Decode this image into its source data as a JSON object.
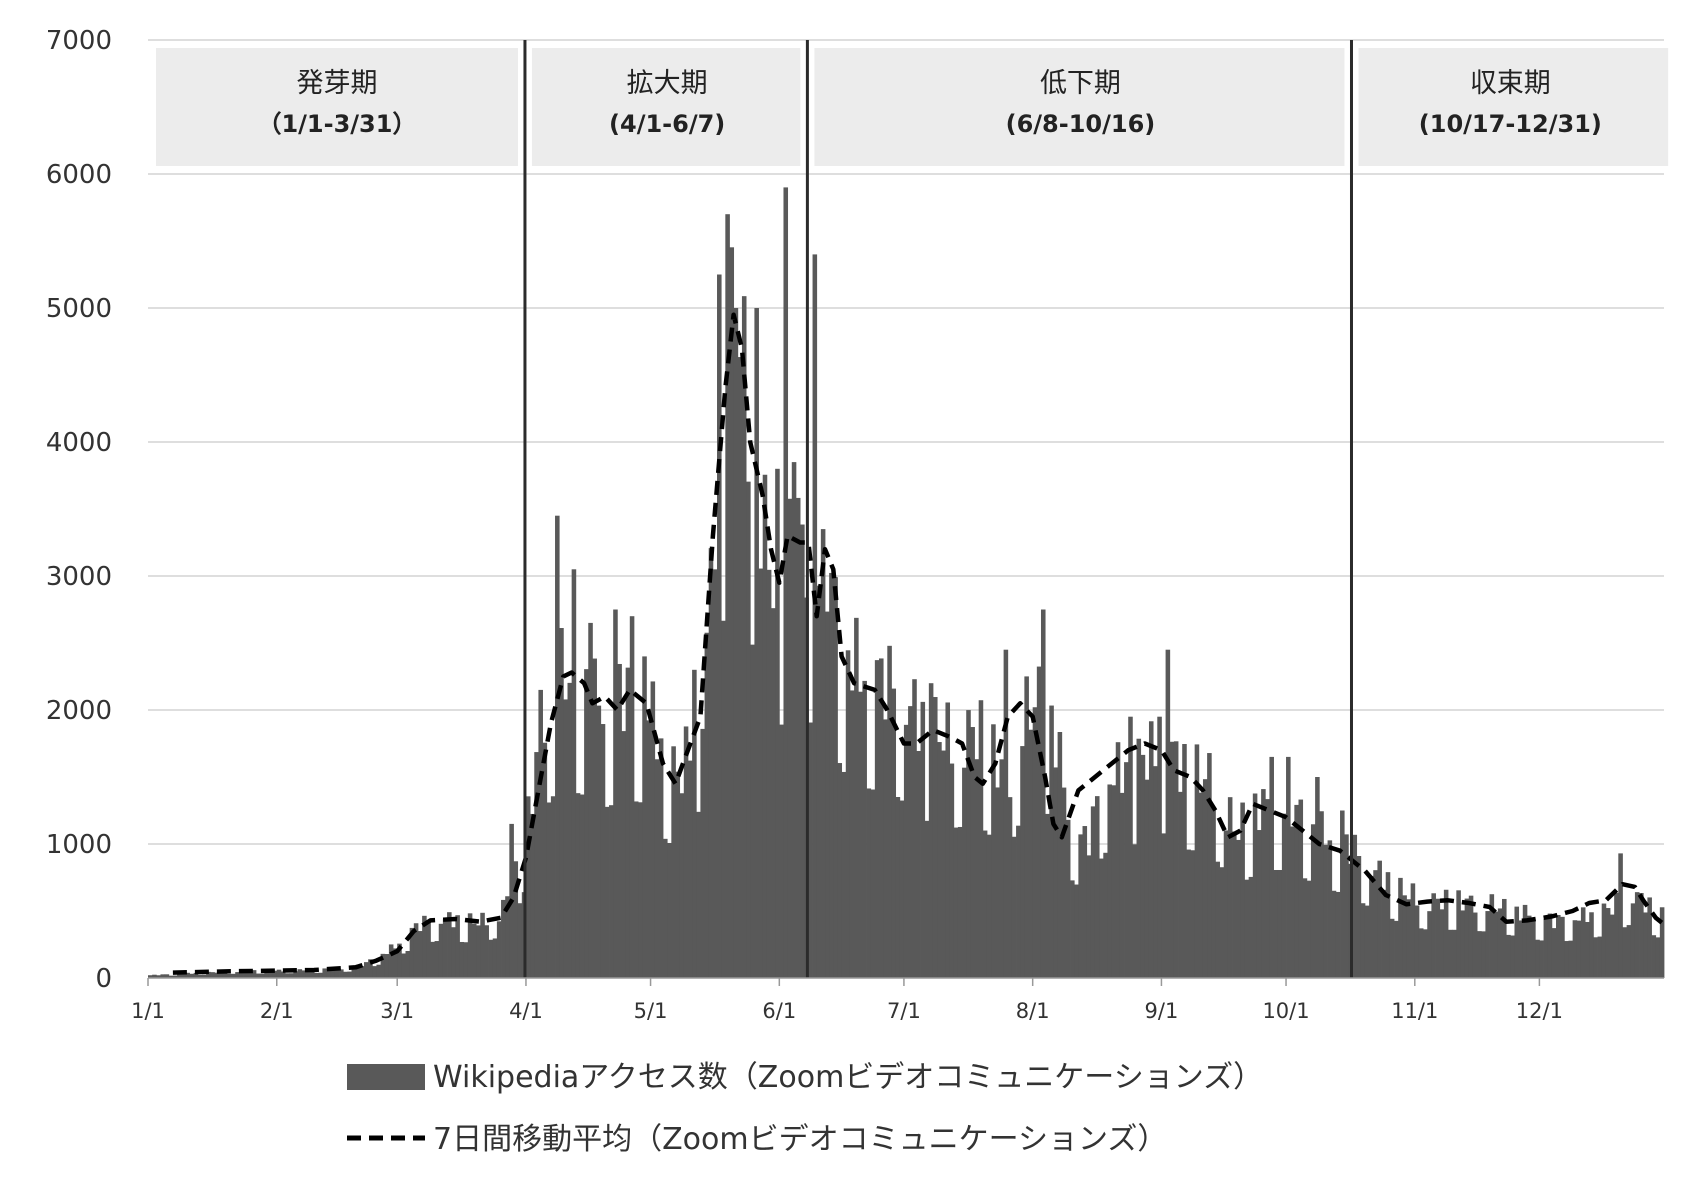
{
  "chart_data": {
    "type": "bar",
    "ylim": [
      0,
      7000
    ],
    "y_ticks": [
      "0",
      "1000",
      "2000",
      "3000",
      "4000",
      "5000",
      "6000",
      "7000"
    ],
    "x_ticks": [
      {
        "label": "1/1",
        "day": 0
      },
      {
        "label": "2/1",
        "day": 31
      },
      {
        "label": "3/1",
        "day": 60
      },
      {
        "label": "4/1",
        "day": 91
      },
      {
        "label": "5/1",
        "day": 121
      },
      {
        "label": "6/1",
        "day": 152
      },
      {
        "label": "7/1",
        "day": 182
      },
      {
        "label": "8/1",
        "day": 213
      },
      {
        "label": "9/1",
        "day": 244
      },
      {
        "label": "10/1",
        "day": 274
      },
      {
        "label": "11/1",
        "day": 305
      },
      {
        "label": "12/1",
        "day": 335
      }
    ],
    "grid": "horizontal",
    "legend_position": "bottom",
    "phases": [
      {
        "name": "発芽期",
        "range": "（1/1-3/31）",
        "start_day": 0,
        "end_day": 90
      },
      {
        "name": "拡大期",
        "range": "(4/1-6/7)",
        "start_day": 91,
        "end_day": 158
      },
      {
        "name": "低下期",
        "range": "(6/8-10/16)",
        "start_day": 159,
        "end_day": 289
      },
      {
        "name": "収束期",
        "range": "(10/17-12/31)",
        "start_day": 290,
        "end_day": 365
      }
    ],
    "series": [
      {
        "name": "Wikipediaアクセス数（Zoomビデオコミュニケーションズ）",
        "kind": "bar",
        "color": "#595959",
        "anchors": [
          [
            0,
            20
          ],
          [
            20,
            50
          ],
          [
            40,
            60
          ],
          [
            50,
            80
          ],
          [
            55,
            150
          ],
          [
            60,
            250
          ],
          [
            65,
            400
          ],
          [
            70,
            450
          ],
          [
            80,
            420
          ],
          [
            85,
            500
          ],
          [
            88,
            700
          ],
          [
            91,
            1100
          ],
          [
            93,
            1500
          ],
          [
            95,
            2000
          ],
          [
            99,
            2300
          ],
          [
            105,
            2200
          ],
          [
            110,
            2050
          ],
          [
            115,
            2150
          ],
          [
            120,
            2100
          ],
          [
            124,
            1700
          ],
          [
            128,
            1500
          ],
          [
            131,
            1800
          ],
          [
            134,
            2200
          ],
          [
            137,
            3800
          ],
          [
            140,
            4800
          ],
          [
            143,
            4700
          ],
          [
            147,
            3600
          ],
          [
            151,
            2900
          ],
          [
            155,
            3300
          ],
          [
            158,
            3300
          ],
          [
            160,
            3000
          ],
          [
            163,
            3200
          ],
          [
            167,
            2500
          ],
          [
            172,
            2300
          ],
          [
            180,
            2200
          ],
          [
            187,
            1900
          ],
          [
            193,
            1800
          ],
          [
            200,
            1850
          ],
          [
            207,
            1500
          ],
          [
            210,
            1900
          ],
          [
            214,
            2100
          ],
          [
            218,
            1900
          ],
          [
            222,
            1200
          ],
          [
            226,
            1000
          ],
          [
            230,
            1500
          ],
          [
            237,
            1600
          ],
          [
            245,
            1750
          ],
          [
            250,
            1550
          ],
          [
            256,
            1500
          ],
          [
            262,
            1100
          ],
          [
            268,
            1300
          ],
          [
            275,
            1300
          ],
          [
            282,
            1100
          ],
          [
            289,
            1000
          ],
          [
            296,
            800
          ],
          [
            302,
            650
          ],
          [
            308,
            580
          ],
          [
            315,
            580
          ],
          [
            322,
            560
          ],
          [
            330,
            500
          ],
          [
            338,
            430
          ],
          [
            345,
            460
          ],
          [
            352,
            520
          ],
          [
            357,
            650
          ],
          [
            360,
            580
          ],
          [
            365,
            450
          ]
        ],
        "peaks": [
          [
            87,
            1150
          ],
          [
            94,
            2150
          ],
          [
            98,
            3450
          ],
          [
            102,
            3050
          ],
          [
            106,
            2650
          ],
          [
            112,
            2750
          ],
          [
            116,
            2700
          ],
          [
            119,
            2400
          ],
          [
            131,
            2300
          ],
          [
            137,
            5250
          ],
          [
            139,
            5700
          ],
          [
            141,
            5000
          ],
          [
            146,
            5000
          ],
          [
            151,
            3800
          ],
          [
            153,
            5900
          ],
          [
            155,
            3850
          ],
          [
            160,
            5400
          ],
          [
            162,
            3350
          ],
          [
            188,
            2200
          ],
          [
            206,
            2450
          ],
          [
            215,
            2750
          ],
          [
            236,
            1950
          ],
          [
            243,
            1950
          ],
          [
            245,
            2450
          ],
          [
            270,
            1650
          ],
          [
            274,
            1650
          ],
          [
            281,
            1500
          ],
          [
            287,
            1250
          ],
          [
            354,
            930
          ]
        ]
      },
      {
        "name": "7日間移動平均（Zoomビデオコミュニケーションズ）",
        "kind": "line",
        "style": "dashed",
        "color": "#000000",
        "points": [
          [
            6,
            40
          ],
          [
            20,
            50
          ],
          [
            40,
            60
          ],
          [
            50,
            80
          ],
          [
            55,
            130
          ],
          [
            60,
            200
          ],
          [
            64,
            350
          ],
          [
            68,
            430
          ],
          [
            74,
            440
          ],
          [
            80,
            420
          ],
          [
            85,
            450
          ],
          [
            88,
            600
          ],
          [
            91,
            900
          ],
          [
            94,
            1400
          ],
          [
            97,
            1900
          ],
          [
            100,
            2250
          ],
          [
            102,
            2280
          ],
          [
            105,
            2200
          ],
          [
            107,
            2050
          ],
          [
            110,
            2100
          ],
          [
            113,
            2000
          ],
          [
            116,
            2150
          ],
          [
            120,
            2050
          ],
          [
            124,
            1600
          ],
          [
            127,
            1450
          ],
          [
            130,
            1700
          ],
          [
            133,
            1950
          ],
          [
            136,
            3300
          ],
          [
            139,
            4400
          ],
          [
            141,
            4950
          ],
          [
            143,
            4700
          ],
          [
            145,
            4000
          ],
          [
            148,
            3600
          ],
          [
            150,
            3200
          ],
          [
            152,
            2950
          ],
          [
            154,
            3300
          ],
          [
            157,
            3250
          ],
          [
            159,
            3250
          ],
          [
            161,
            2700
          ],
          [
            163,
            3200
          ],
          [
            165,
            3050
          ],
          [
            167,
            2400
          ],
          [
            170,
            2200
          ],
          [
            175,
            2150
          ],
          [
            178,
            2000
          ],
          [
            182,
            1750
          ],
          [
            185,
            1750
          ],
          [
            189,
            1850
          ],
          [
            193,
            1800
          ],
          [
            196,
            1750
          ],
          [
            199,
            1500
          ],
          [
            201,
            1450
          ],
          [
            204,
            1600
          ],
          [
            207,
            1950
          ],
          [
            210,
            2050
          ],
          [
            213,
            1950
          ],
          [
            216,
            1500
          ],
          [
            218,
            1150
          ],
          [
            220,
            1050
          ],
          [
            224,
            1400
          ],
          [
            230,
            1550
          ],
          [
            236,
            1700
          ],
          [
            240,
            1750
          ],
          [
            244,
            1700
          ],
          [
            247,
            1550
          ],
          [
            251,
            1500
          ],
          [
            254,
            1400
          ],
          [
            257,
            1250
          ],
          [
            260,
            1050
          ],
          [
            263,
            1100
          ],
          [
            266,
            1300
          ],
          [
            270,
            1250
          ],
          [
            274,
            1200
          ],
          [
            278,
            1100
          ],
          [
            282,
            1000
          ],
          [
            287,
            950
          ],
          [
            293,
            800
          ],
          [
            298,
            620
          ],
          [
            303,
            550
          ],
          [
            308,
            570
          ],
          [
            313,
            580
          ],
          [
            318,
            560
          ],
          [
            323,
            530
          ],
          [
            327,
            420
          ],
          [
            332,
            430
          ],
          [
            338,
            460
          ],
          [
            343,
            500
          ],
          [
            347,
            560
          ],
          [
            351,
            580
          ],
          [
            355,
            700
          ],
          [
            358,
            680
          ],
          [
            360,
            580
          ],
          [
            363,
            450
          ],
          [
            365,
            400
          ]
        ]
      }
    ]
  }
}
